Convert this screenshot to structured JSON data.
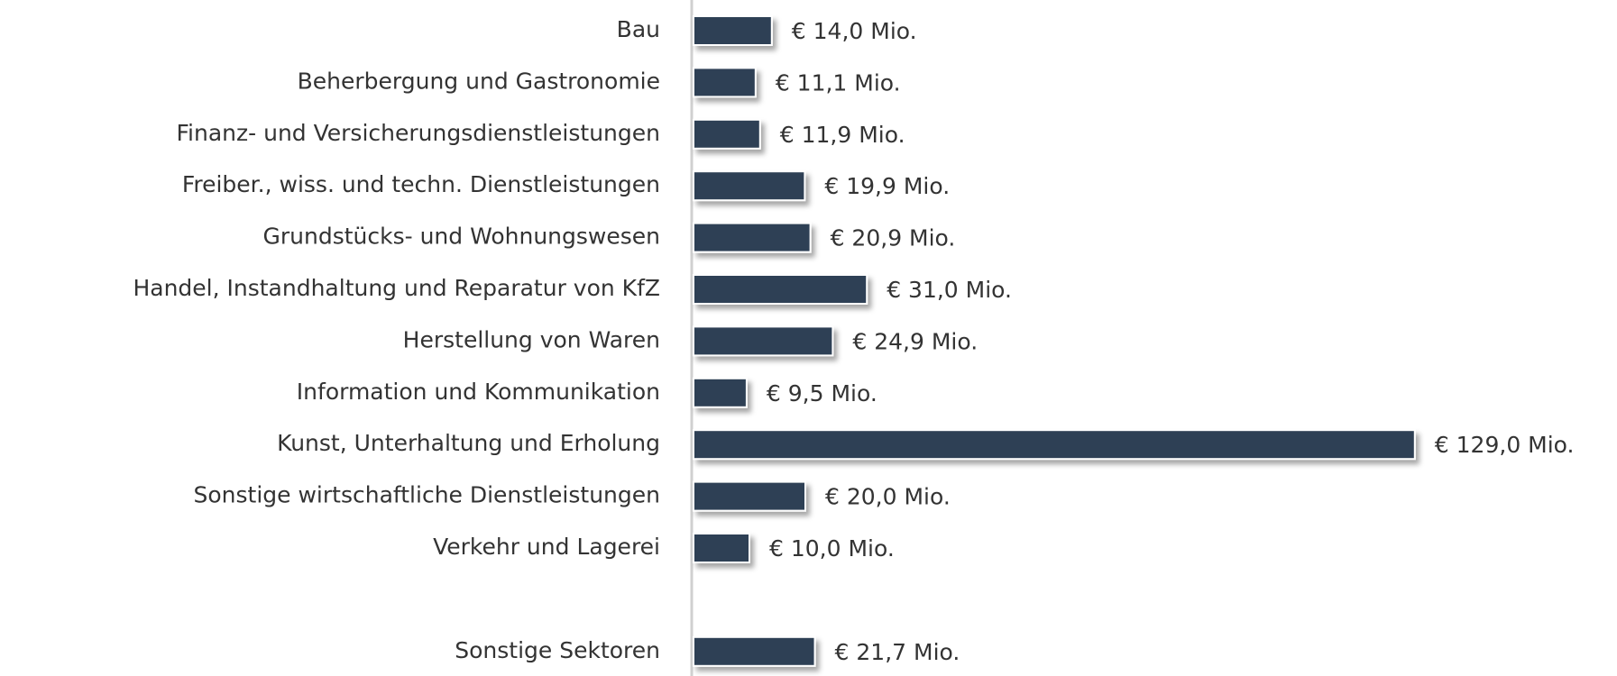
{
  "chart_data": {
    "type": "bar",
    "orientation": "horizontal",
    "categories": [
      "Bau",
      "Beherbergung und Gastronomie",
      "Finanz- und Versicherungsdienstleistungen",
      "Freiber., wiss. und techn. Dienstleistungen",
      "Grundstücks- und Wohnungswesen",
      "Handel, Instandhaltung und Reparatur von KfZ",
      "Herstellung von Waren",
      "Information und Kommunikation",
      "Kunst, Unterhaltung und Erholung",
      "Sonstige wirtschaftliche Dienstleistungen",
      "Verkehr und Lagerei",
      null,
      "Sonstige Sektoren"
    ],
    "values": [
      14.0,
      11.1,
      11.9,
      19.9,
      20.9,
      31.0,
      24.9,
      9.5,
      129.0,
      20.0,
      10.0,
      null,
      21.7
    ],
    "value_labels": [
      "€ 14,0 Mio.",
      "€ 11,1 Mio.",
      "€ 11,9 Mio.",
      "€ 19,9 Mio.",
      "€ 20,9 Mio.",
      "€ 31,0 Mio.",
      "€ 24,9 Mio.",
      "€ 9,5 Mio.",
      "€ 129,0 Mio.",
      "€ 20,0 Mio.",
      "€ 10,0 Mio.",
      null,
      "€ 21,7 Mio."
    ],
    "color": "#2f4154"
  }
}
